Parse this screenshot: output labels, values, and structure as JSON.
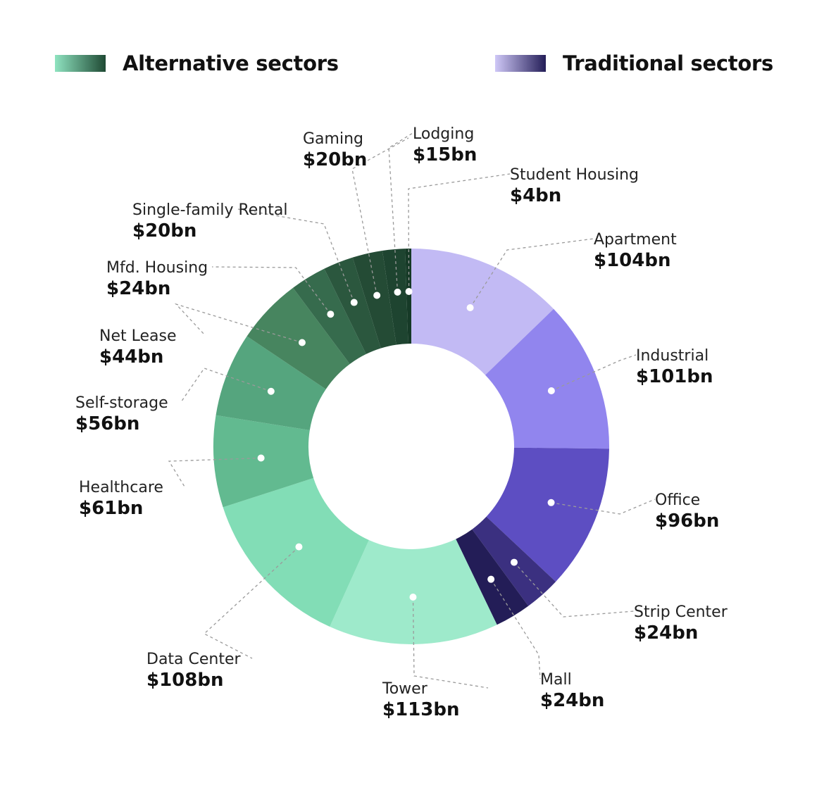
{
  "legend": [
    {
      "label": "Alternative sectors",
      "gradient": [
        "#8fe3c0",
        "#1f4a34"
      ]
    },
    {
      "label": "Traditional sectors",
      "gradient": [
        "#cfc8f7",
        "#241e58"
      ]
    }
  ],
  "chart_data": {
    "type": "pie",
    "donut": true,
    "unit": "$bn",
    "slices": [
      {
        "name": "Apartment",
        "value": 104,
        "value_label": "$104bn",
        "group": "Traditional sectors",
        "color": "#c2baf4"
      },
      {
        "name": "Industrial",
        "value": 101,
        "value_label": "$101bn",
        "group": "Traditional sectors",
        "color": "#9185ee"
      },
      {
        "name": "Office",
        "value": 96,
        "value_label": "$96bn",
        "group": "Traditional sectors",
        "color": "#5d4ec2"
      },
      {
        "name": "Strip Center",
        "value": 24,
        "value_label": "$24bn",
        "group": "Traditional sectors",
        "color": "#3b3080"
      },
      {
        "name": "Mall",
        "value": 24,
        "value_label": "$24bn",
        "group": "Traditional sectors",
        "color": "#231d57"
      },
      {
        "name": "Tower",
        "value": 113,
        "value_label": "$113bn",
        "group": "Alternative sectors",
        "color": "#9eeacb"
      },
      {
        "name": "Data Center",
        "value": 108,
        "value_label": "$108bn",
        "group": "Alternative sectors",
        "color": "#82ddb6"
      },
      {
        "name": "Healthcare",
        "value": 61,
        "value_label": "$61bn",
        "group": "Alternative sectors",
        "color": "#62ba90"
      },
      {
        "name": "Self-storage",
        "value": 56,
        "value_label": "$56bn",
        "group": "Alternative sectors",
        "color": "#55a57e"
      },
      {
        "name": "Net Lease",
        "value": 44,
        "value_label": "$44bn",
        "group": "Alternative sectors",
        "color": "#47855f"
      },
      {
        "name": "Mfd. Housing",
        "value": 24,
        "value_label": "$24bn",
        "group": "Alternative sectors",
        "color": "#366b4d"
      },
      {
        "name": "Single-family Rental",
        "value": 20,
        "value_label": "$20bn",
        "group": "Alternative sectors",
        "color": "#2b573e"
      },
      {
        "name": "Gaming",
        "value": 20,
        "value_label": "$20bn",
        "group": "Alternative sectors",
        "color": "#244b35"
      },
      {
        "name": "Lodging",
        "value": 15,
        "value_label": "$15bn",
        "group": "Alternative sectors",
        "color": "#1e4430"
      },
      {
        "name": "Student Housing",
        "value": 4,
        "value_label": "$4bn",
        "group": "Alternative sectors",
        "color": "#163a27"
      }
    ]
  }
}
